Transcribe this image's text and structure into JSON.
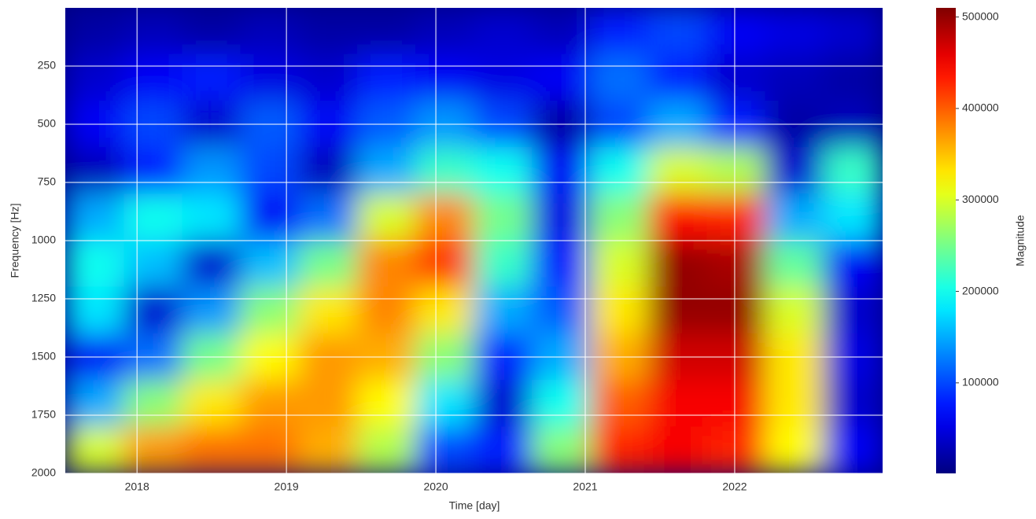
{
  "chart_data": {
    "type": "heatmap",
    "x_label": "Time [day]",
    "y_label": "Frequency [Hz]",
    "colorbar_label": "Magnitude",
    "colormap": "jet",
    "grid": true,
    "x": [
      2017.72,
      2018.11,
      2018.5,
      2018.89,
      2019.28,
      2019.67,
      2020.06,
      2020.45,
      2020.84,
      2021.23,
      2021.62,
      2022.01,
      2022.4,
      2022.79
    ],
    "y": [
      100,
      300,
      500,
      700,
      900,
      1100,
      1300,
      1500,
      1700,
      1900
    ],
    "z": [
      [
        20000,
        30000,
        20000,
        30000,
        20000,
        20000,
        30000,
        40000,
        30000,
        80000,
        100000,
        60000,
        50000,
        40000
      ],
      [
        40000,
        60000,
        80000,
        50000,
        40000,
        80000,
        60000,
        50000,
        60000,
        120000,
        80000,
        40000,
        30000,
        20000
      ],
      [
        60000,
        100000,
        40000,
        110000,
        60000,
        110000,
        140000,
        100000,
        20000,
        100000,
        150000,
        80000,
        20000,
        30000
      ],
      [
        30000,
        80000,
        140000,
        100000,
        30000,
        150000,
        220000,
        200000,
        60000,
        200000,
        300000,
        280000,
        40000,
        220000
      ],
      [
        150000,
        200000,
        180000,
        60000,
        120000,
        300000,
        380000,
        250000,
        50000,
        260000,
        440000,
        430000,
        150000,
        180000
      ],
      [
        200000,
        160000,
        40000,
        160000,
        250000,
        380000,
        420000,
        220000,
        80000,
        300000,
        500000,
        490000,
        240000,
        60000
      ],
      [
        180000,
        40000,
        140000,
        260000,
        330000,
        380000,
        330000,
        150000,
        110000,
        330000,
        500000,
        500000,
        300000,
        40000
      ],
      [
        60000,
        120000,
        250000,
        320000,
        370000,
        360000,
        260000,
        80000,
        150000,
        360000,
        470000,
        470000,
        330000,
        50000
      ],
      [
        150000,
        260000,
        330000,
        370000,
        370000,
        320000,
        180000,
        40000,
        200000,
        400000,
        450000,
        450000,
        330000,
        40000
      ],
      [
        300000,
        370000,
        390000,
        390000,
        360000,
        280000,
        100000,
        80000,
        260000,
        430000,
        450000,
        430000,
        320000,
        60000
      ]
    ],
    "xlim": [
      2017.52,
      2022.99
    ],
    "xticks": [
      2018,
      2019,
      2020,
      2021,
      2022
    ],
    "ylim": [
      2000,
      0
    ],
    "yticks": [
      250,
      500,
      750,
      1000,
      1250,
      1500,
      1750,
      2000
    ],
    "clim": [
      1000,
      510000
    ],
    "cticks": [
      100000,
      200000,
      300000,
      400000,
      500000
    ]
  }
}
